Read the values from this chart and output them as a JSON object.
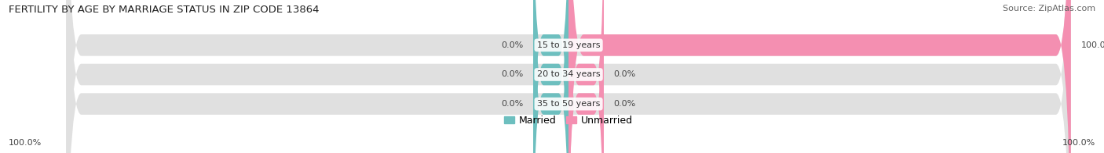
{
  "title": "FERTILITY BY AGE BY MARRIAGE STATUS IN ZIP CODE 13864",
  "source": "Source: ZipAtlas.com",
  "categories": [
    "15 to 19 years",
    "20 to 34 years",
    "35 to 50 years"
  ],
  "married_values": [
    0.0,
    0.0,
    0.0
  ],
  "unmarried_values": [
    100.0,
    0.0,
    0.0
  ],
  "married_color": "#6dbfbf",
  "unmarried_color": "#f48fb1",
  "bar_bg_color": "#e0e0e0",
  "title_fontsize": 9.5,
  "source_fontsize": 8,
  "label_fontsize": 8,
  "category_fontsize": 8,
  "legend_fontsize": 9,
  "bottom_left_label": "100.0%",
  "bottom_right_label": "100.0%",
  "figsize": [
    14.06,
    1.96
  ],
  "dpi": 100
}
